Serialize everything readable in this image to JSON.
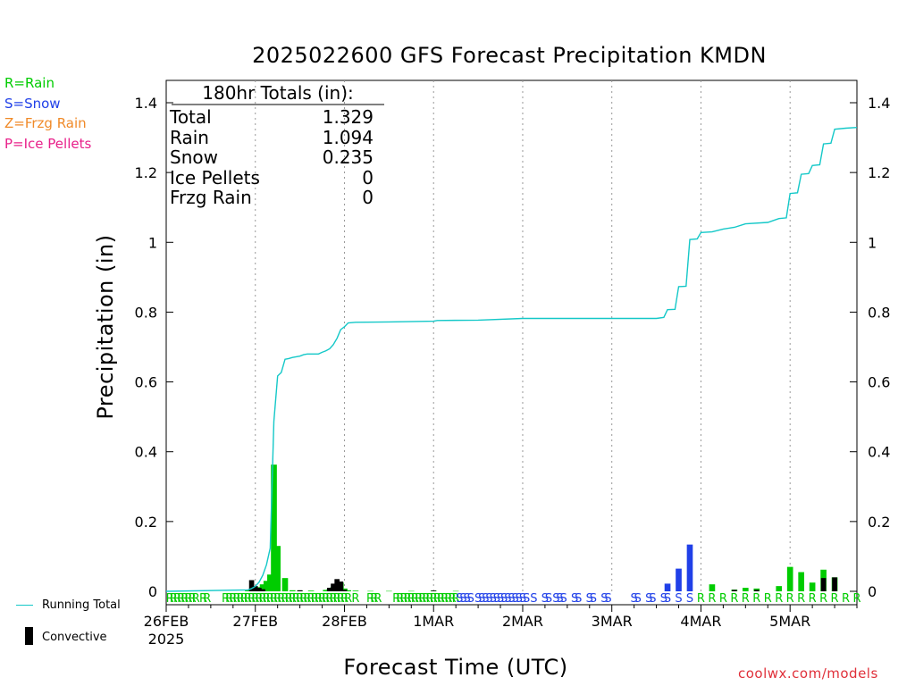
{
  "chart_data": {
    "type": "bar",
    "title": "2025022600 GFS Forecast Precipitation KMDN",
    "xlabel": "Forecast Time (UTC)",
    "ylabel": "Precipitation (in)",
    "ylim": [
      0,
      1.46
    ],
    "yticks": [
      0,
      0.2,
      0.4,
      0.6,
      0.8,
      1,
      1.2,
      1.4
    ],
    "ytick_labels": [
      "0",
      "0.2",
      "0.4",
      "0.6",
      "0.8",
      "1",
      "1.2",
      "1.4"
    ],
    "x_unit": "forecast hour from 2025-02-26 00Z",
    "xlim": [
      0,
      186
    ],
    "date_ticks": [
      {
        "hour": 0,
        "label": "26FEB",
        "sublabel": "2025"
      },
      {
        "hour": 24,
        "label": "27FEB"
      },
      {
        "hour": 48,
        "label": "28FEB"
      },
      {
        "hour": 72,
        "label": "1MAR"
      },
      {
        "hour": 96,
        "label": "2MAR"
      },
      {
        "hour": 120,
        "label": "3MAR"
      },
      {
        "hour": 144,
        "label": "4MAR"
      },
      {
        "hour": 168,
        "label": "5MAR"
      }
    ],
    "grid": "vertical dotted at 00Z",
    "series": [
      {
        "name": "Rain",
        "color": "#00cc00",
        "type": "bar",
        "points": [
          [
            22,
            0.004
          ],
          [
            23,
            0.004
          ],
          [
            24,
            0.006
          ],
          [
            25,
            0.012
          ],
          [
            26,
            0.02
          ],
          [
            27,
            0.03
          ],
          [
            28,
            0.048
          ],
          [
            29,
            0.363
          ],
          [
            30,
            0.13
          ],
          [
            32,
            0.038
          ],
          [
            34,
            0.003
          ],
          [
            36,
            0.002
          ],
          [
            39,
            0.002
          ],
          [
            43,
            0.004
          ],
          [
            44,
            0.006
          ],
          [
            45,
            0.012
          ],
          [
            46,
            0.018
          ],
          [
            47,
            0.025
          ],
          [
            48,
            0.008
          ],
          [
            49,
            0.003
          ],
          [
            51,
            0.002
          ],
          [
            55,
            0.001
          ],
          [
            60,
            0.001
          ],
          [
            66,
            0.001
          ],
          [
            72,
            0.002
          ],
          [
            78,
            0.001
          ],
          [
            147,
            0.02
          ],
          [
            153,
            0.005
          ],
          [
            156,
            0.01
          ],
          [
            159,
            0.008
          ],
          [
            165,
            0.015
          ],
          [
            168,
            0.07
          ],
          [
            171,
            0.055
          ],
          [
            174,
            0.025
          ],
          [
            177,
            0.062
          ],
          [
            180,
            0.04
          ]
        ]
      },
      {
        "name": "Snow",
        "color": "#2040e8",
        "type": "bar",
        "points": [
          [
            135,
            0.022
          ],
          [
            138,
            0.065
          ],
          [
            141,
            0.134
          ]
        ]
      },
      {
        "name": "Convective",
        "color": "#000000",
        "type": "bar",
        "points": [
          [
            23,
            0.032
          ],
          [
            24,
            0.015
          ],
          [
            25,
            0.01
          ],
          [
            26,
            0.006
          ],
          [
            36,
            0.003
          ],
          [
            44,
            0.01
          ],
          [
            45,
            0.022
          ],
          [
            46,
            0.035
          ],
          [
            47,
            0.028
          ],
          [
            48,
            0.004
          ],
          [
            72,
            0.002
          ],
          [
            153,
            0.004
          ],
          [
            159,
            0.004
          ],
          [
            177,
            0.038
          ],
          [
            180,
            0.04
          ]
        ]
      },
      {
        "name": "Running Total",
        "color": "#14c8c8",
        "type": "line",
        "points": [
          [
            0,
            0
          ],
          [
            22,
            0.004
          ],
          [
            23,
            0.008
          ],
          [
            24,
            0.014
          ],
          [
            25,
            0.026
          ],
          [
            26,
            0.046
          ],
          [
            27,
            0.076
          ],
          [
            28,
            0.124
          ],
          [
            29,
            0.487
          ],
          [
            30,
            0.617
          ],
          [
            31,
            0.627
          ],
          [
            32,
            0.665
          ],
          [
            33,
            0.667
          ],
          [
            34,
            0.67
          ],
          [
            35,
            0.672
          ],
          [
            36,
            0.674
          ],
          [
            37,
            0.678
          ],
          [
            38,
            0.68
          ],
          [
            41,
            0.68
          ],
          [
            42,
            0.685
          ],
          [
            43,
            0.689
          ],
          [
            44,
            0.695
          ],
          [
            45,
            0.707
          ],
          [
            46,
            0.725
          ],
          [
            47,
            0.75
          ],
          [
            48,
            0.758
          ],
          [
            49,
            0.769
          ],
          [
            51,
            0.771
          ],
          [
            60,
            0.772
          ],
          [
            72,
            0.774
          ],
          [
            73,
            0.776
          ],
          [
            84,
            0.777
          ],
          [
            96,
            0.782
          ],
          [
            108,
            0.782
          ],
          [
            120,
            0.782
          ],
          [
            132,
            0.782
          ],
          [
            134,
            0.785
          ],
          [
            135,
            0.807
          ],
          [
            137,
            0.808
          ],
          [
            138,
            0.873
          ],
          [
            140,
            0.874
          ],
          [
            141,
            1.008
          ],
          [
            143,
            1.01
          ],
          [
            144,
            1.028
          ],
          [
            147,
            1.03
          ],
          [
            150,
            1.038
          ],
          [
            153,
            1.043
          ],
          [
            156,
            1.053
          ],
          [
            162,
            1.057
          ],
          [
            165,
            1.068
          ],
          [
            167,
            1.07
          ],
          [
            168,
            1.14
          ],
          [
            170,
            1.142
          ],
          [
            171,
            1.195
          ],
          [
            173,
            1.197
          ],
          [
            174,
            1.22
          ],
          [
            176,
            1.222
          ],
          [
            177,
            1.282
          ],
          [
            179,
            1.284
          ],
          [
            180,
            1.324
          ],
          [
            183,
            1.327
          ],
          [
            186,
            1.329
          ]
        ]
      }
    ],
    "ptype_marks": {
      "description": "Precip type letters along bottom axis",
      "items": [
        {
          "hour": 1,
          "type": "R"
        },
        {
          "hour": 2,
          "type": "R"
        },
        {
          "hour": 3,
          "type": "R"
        },
        {
          "hour": 4,
          "type": "R"
        },
        {
          "hour": 5,
          "type": "R"
        },
        {
          "hour": 6,
          "type": "R"
        },
        {
          "hour": 7,
          "type": "R"
        },
        {
          "hour": 8,
          "type": "R"
        },
        {
          "hour": 10,
          "type": "R"
        },
        {
          "hour": 11,
          "type": "R"
        },
        {
          "hour": 16,
          "type": "R"
        },
        {
          "hour": 17,
          "type": "R"
        },
        {
          "hour": 18,
          "type": "R"
        },
        {
          "hour": 19,
          "type": "R"
        },
        {
          "hour": 20,
          "type": "R"
        },
        {
          "hour": 21,
          "type": "R"
        },
        {
          "hour": 22,
          "type": "R"
        },
        {
          "hour": 23,
          "type": "R"
        },
        {
          "hour": 24,
          "type": "R"
        },
        {
          "hour": 25,
          "type": "R"
        },
        {
          "hour": 26,
          "type": "R"
        },
        {
          "hour": 27,
          "type": "R"
        },
        {
          "hour": 28,
          "type": "R"
        },
        {
          "hour": 29,
          "type": "R"
        },
        {
          "hour": 30,
          "type": "R"
        },
        {
          "hour": 31,
          "type": "R"
        },
        {
          "hour": 32,
          "type": "R"
        },
        {
          "hour": 33,
          "type": "R"
        },
        {
          "hour": 34,
          "type": "R"
        },
        {
          "hour": 35,
          "type": "R"
        },
        {
          "hour": 36,
          "type": "R"
        },
        {
          "hour": 37,
          "type": "R"
        },
        {
          "hour": 38,
          "type": "R"
        },
        {
          "hour": 39,
          "type": "R"
        },
        {
          "hour": 40,
          "type": "R"
        },
        {
          "hour": 41,
          "type": "R"
        },
        {
          "hour": 42,
          "type": "R"
        },
        {
          "hour": 43,
          "type": "R"
        },
        {
          "hour": 44,
          "type": "R"
        },
        {
          "hour": 45,
          "type": "R"
        },
        {
          "hour": 46,
          "type": "R"
        },
        {
          "hour": 47,
          "type": "R"
        },
        {
          "hour": 48,
          "type": "R"
        },
        {
          "hour": 49,
          "type": "R"
        },
        {
          "hour": 51,
          "type": "R"
        },
        {
          "hour": 55,
          "type": "R"
        },
        {
          "hour": 56,
          "type": "R"
        },
        {
          "hour": 57,
          "type": "R"
        },
        {
          "hour": 62,
          "type": "R"
        },
        {
          "hour": 63,
          "type": "R"
        },
        {
          "hour": 64,
          "type": "R"
        },
        {
          "hour": 65,
          "type": "R"
        },
        {
          "hour": 66,
          "type": "R"
        },
        {
          "hour": 67,
          "type": "R"
        },
        {
          "hour": 68,
          "type": "R"
        },
        {
          "hour": 69,
          "type": "R"
        },
        {
          "hour": 70,
          "type": "R"
        },
        {
          "hour": 71,
          "type": "R"
        },
        {
          "hour": 72,
          "type": "R"
        },
        {
          "hour": 73,
          "type": "R"
        },
        {
          "hour": 74,
          "type": "R"
        },
        {
          "hour": 75,
          "type": "R"
        },
        {
          "hour": 76,
          "type": "R"
        },
        {
          "hour": 77,
          "type": "R"
        },
        {
          "hour": 78,
          "type": "R"
        },
        {
          "hour": 79,
          "type": "S"
        },
        {
          "hour": 80,
          "type": "S"
        },
        {
          "hour": 81,
          "type": "S"
        },
        {
          "hour": 82,
          "type": "S"
        },
        {
          "hour": 84,
          "type": "S"
        },
        {
          "hour": 85,
          "type": "S"
        },
        {
          "hour": 86,
          "type": "S"
        },
        {
          "hour": 87,
          "type": "S"
        },
        {
          "hour": 88,
          "type": "S"
        },
        {
          "hour": 89,
          "type": "S"
        },
        {
          "hour": 90,
          "type": "S"
        },
        {
          "hour": 91,
          "type": "S"
        },
        {
          "hour": 92,
          "type": "S"
        },
        {
          "hour": 93,
          "type": "S"
        },
        {
          "hour": 94,
          "type": "S"
        },
        {
          "hour": 95,
          "type": "S"
        },
        {
          "hour": 96,
          "type": "S"
        },
        {
          "hour": 97,
          "type": "S"
        },
        {
          "hour": 99,
          "type": "S"
        },
        {
          "hour": 102,
          "type": "S"
        },
        {
          "hour": 103,
          "type": "S"
        },
        {
          "hour": 105,
          "type": "S"
        },
        {
          "hour": 106,
          "type": "S"
        },
        {
          "hour": 107,
          "type": "S"
        },
        {
          "hour": 110,
          "type": "S"
        },
        {
          "hour": 111,
          "type": "S"
        },
        {
          "hour": 114,
          "type": "S"
        },
        {
          "hour": 115,
          "type": "S"
        },
        {
          "hour": 118,
          "type": "S"
        },
        {
          "hour": 119,
          "type": "S"
        },
        {
          "hour": 126,
          "type": "S"
        },
        {
          "hour": 127,
          "type": "S"
        },
        {
          "hour": 130,
          "type": "S"
        },
        {
          "hour": 131,
          "type": "S"
        },
        {
          "hour": 134,
          "type": "S"
        },
        {
          "hour": 135,
          "type": "S"
        },
        {
          "hour": 138,
          "type": "S"
        },
        {
          "hour": 141,
          "type": "S"
        },
        {
          "hour": 144,
          "type": "R"
        },
        {
          "hour": 147,
          "type": "R"
        },
        {
          "hour": 150,
          "type": "R"
        },
        {
          "hour": 153,
          "type": "R"
        },
        {
          "hour": 156,
          "type": "R"
        },
        {
          "hour": 159,
          "type": "R"
        },
        {
          "hour": 162,
          "type": "R"
        },
        {
          "hour": 165,
          "type": "R"
        },
        {
          "hour": 168,
          "type": "R"
        },
        {
          "hour": 171,
          "type": "R"
        },
        {
          "hour": 174,
          "type": "R"
        },
        {
          "hour": 177,
          "type": "R"
        },
        {
          "hour": 180,
          "type": "R"
        },
        {
          "hour": 183,
          "type": "R"
        },
        {
          "hour": 186,
          "type": "R"
        }
      ]
    }
  },
  "legend": {
    "rain": "R=Rain",
    "snow": "S=Snow",
    "frzg_rain": "Z=Frzg Rain",
    "ice_pellets": "P=Ice Pellets",
    "running_total": "Running Total",
    "convective": "Convective"
  },
  "colors": {
    "rain": "#00cc00",
    "snow": "#2040e8",
    "frzg_rain": "#f08a28",
    "ice_pellets": "#e8208a",
    "running_total": "#14c8c8",
    "convective": "#000000",
    "credit": "#e0303a"
  },
  "totals": {
    "heading": "180hr Totals (in):",
    "rows": [
      {
        "label": "Total",
        "value": "1.329"
      },
      {
        "label": "Rain",
        "value": "1.094"
      },
      {
        "label": "Snow",
        "value": "0.235"
      },
      {
        "label": "Ice Pellets",
        "value": "0"
      },
      {
        "label": "Frzg Rain",
        "value": "0"
      }
    ]
  },
  "credit": "coolwx.com/models"
}
